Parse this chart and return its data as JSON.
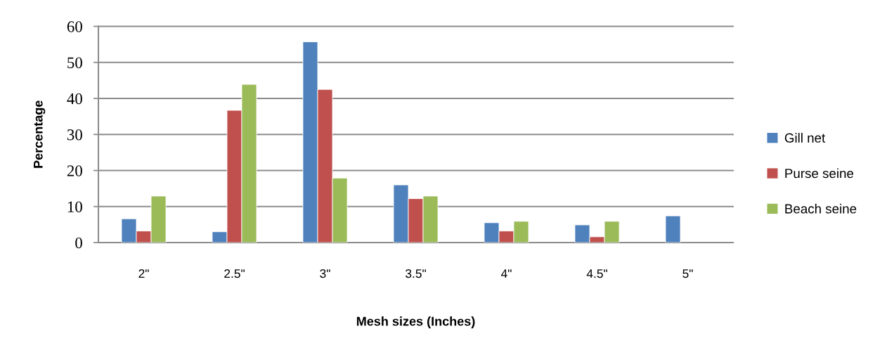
{
  "chart_data": {
    "type": "bar",
    "xlabel": "Mesh sizes (Inches)",
    "ylabel": "Percentage",
    "categories": [
      "2\"",
      "2.5\"",
      "3\"",
      "3.5\"",
      "4\"",
      "4.5\"",
      "5\""
    ],
    "series": [
      {
        "name": "Gill net",
        "color": "#4f81bd",
        "values": [
          6.6,
          3.0,
          55.7,
          16.0,
          5.5,
          4.9,
          7.4
        ]
      },
      {
        "name": "Purse seine",
        "color": "#c0504d",
        "values": [
          3.2,
          36.7,
          42.5,
          12.2,
          3.2,
          1.6,
          null
        ]
      },
      {
        "name": "Beach seine",
        "color": "#9bbb59",
        "values": [
          12.9,
          43.9,
          17.9,
          12.9,
          5.9,
          5.9,
          null
        ]
      }
    ],
    "ylim": [
      0,
      60
    ],
    "yticks": [
      0,
      10,
      20,
      30,
      40,
      50,
      60
    ],
    "grid": "y",
    "legend": "right"
  }
}
